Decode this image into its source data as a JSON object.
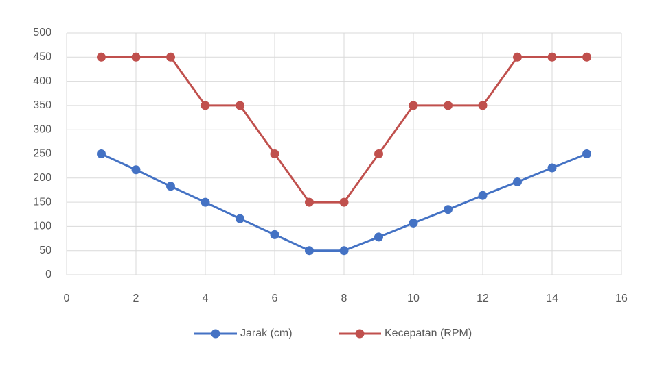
{
  "chart_data": {
    "type": "line",
    "x": [
      1,
      2,
      3,
      4,
      5,
      6,
      7,
      8,
      9,
      10,
      11,
      12,
      13,
      14,
      15
    ],
    "series": [
      {
        "name": "Jarak (cm)",
        "color": "#4472c4",
        "values": [
          250,
          217,
          183,
          150,
          116,
          83,
          50,
          50,
          78,
          107,
          135,
          164,
          192,
          221,
          250
        ]
      },
      {
        "name": "Kecepatan (RPM)",
        "color": "#c0504d",
        "values": [
          450,
          450,
          450,
          350,
          350,
          250,
          150,
          150,
          250,
          350,
          350,
          350,
          450,
          450,
          450
        ]
      }
    ],
    "xlim": [
      0,
      16
    ],
    "xticks": [
      0,
      2,
      4,
      6,
      8,
      10,
      12,
      14,
      16
    ],
    "ylim": [
      0,
      500
    ],
    "yticks": [
      0,
      50,
      100,
      150,
      200,
      250,
      300,
      350,
      400,
      450,
      500
    ],
    "grid": true,
    "legend": "bottom"
  }
}
